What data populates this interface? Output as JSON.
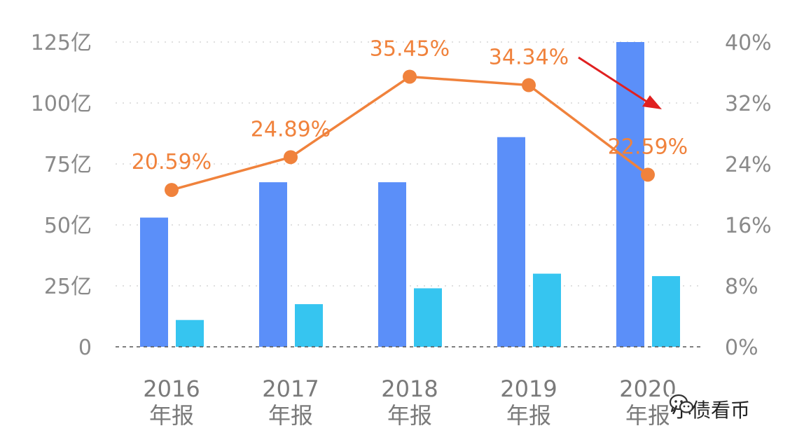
{
  "chart_data": {
    "type": "bar",
    "categories": [
      [
        "2016",
        "年报"
      ],
      [
        "2017",
        "年报"
      ],
      [
        "2018",
        "年报"
      ],
      [
        "2019",
        "年报"
      ],
      [
        "2020",
        "年报"
      ]
    ],
    "y_left": {
      "ticks": [
        "0",
        "25亿",
        "50亿",
        "75亿",
        "100亿",
        "125亿"
      ],
      "ylim": [
        0,
        125
      ]
    },
    "y_right": {
      "ticks": [
        "0%",
        "8%",
        "16%",
        "24%",
        "32%",
        "40%"
      ],
      "ylim": [
        0,
        40
      ]
    },
    "series": [
      {
        "type": "bar",
        "axis": "left",
        "color": "#5b8ff9",
        "values": [
          53,
          67.5,
          67.5,
          86,
          125
        ]
      },
      {
        "type": "bar",
        "axis": "left",
        "color": "#36c5f0",
        "values": [
          11,
          17.5,
          24,
          30,
          29
        ]
      },
      {
        "type": "line",
        "axis": "right",
        "color": "#f0823c",
        "values": [
          20.59,
          24.89,
          35.45,
          34.34,
          22.59
        ],
        "labels": [
          "20.59%",
          "24.89%",
          "35.45%",
          "34.34%",
          "22.59%"
        ]
      }
    ],
    "grid": true,
    "annotation": {
      "type": "arrow",
      "color": "#e02020",
      "meaning": "decline"
    }
  },
  "watermark": {
    "icon": "wechat-icon",
    "text": "小债看币"
  }
}
